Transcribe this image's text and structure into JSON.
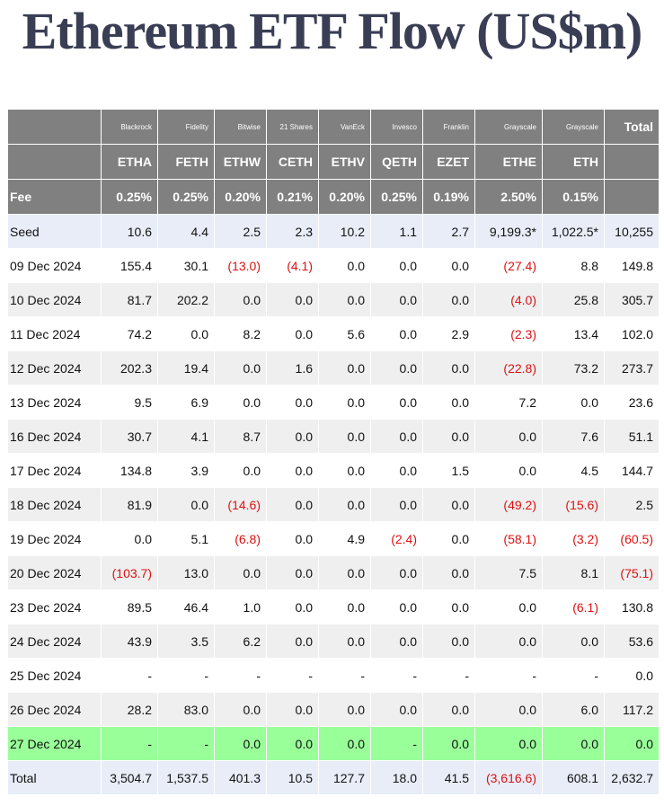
{
  "title": "Ethereum ETF Flow (US$m)",
  "header": {
    "issuers": [
      "",
      "Blackrock",
      "Fidelity",
      "Bitwise",
      "21 Shares",
      "VanEck",
      "Invesco",
      "Franklin",
      "Grayscale",
      "Grayscale",
      "Total"
    ],
    "tickers": [
      "",
      "ETHA",
      "FETH",
      "ETHW",
      "CETH",
      "ETHV",
      "QETH",
      "EZET",
      "ETHE",
      "ETH",
      ""
    ],
    "fees": [
      "Fee",
      "0.25%",
      "0.25%",
      "0.20%",
      "0.21%",
      "0.20%",
      "0.25%",
      "0.19%",
      "2.50%",
      "0.15%",
      ""
    ]
  },
  "rows": [
    {
      "cells": [
        "Seed",
        "10.6",
        "4.4",
        "2.5",
        "2.3",
        "10.2",
        "1.1",
        "2.7",
        "9,199.3*",
        "1,022.5*",
        "10,255"
      ]
    },
    {
      "cells": [
        "09 Dec 2024",
        "155.4",
        "30.1",
        "(13.0)",
        "(4.1)",
        "0.0",
        "0.0",
        "0.0",
        "(27.4)",
        "8.8",
        "149.8"
      ]
    },
    {
      "cells": [
        "10 Dec 2024",
        "81.7",
        "202.2",
        "0.0",
        "0.0",
        "0.0",
        "0.0",
        "0.0",
        "(4.0)",
        "25.8",
        "305.7"
      ]
    },
    {
      "cells": [
        "11 Dec 2024",
        "74.2",
        "0.0",
        "8.2",
        "0.0",
        "5.6",
        "0.0",
        "2.9",
        "(2.3)",
        "13.4",
        "102.0"
      ]
    },
    {
      "cells": [
        "12 Dec 2024",
        "202.3",
        "19.4",
        "0.0",
        "1.6",
        "0.0",
        "0.0",
        "0.0",
        "(22.8)",
        "73.2",
        "273.7"
      ]
    },
    {
      "cells": [
        "13 Dec 2024",
        "9.5",
        "6.9",
        "0.0",
        "0.0",
        "0.0",
        "0.0",
        "0.0",
        "7.2",
        "0.0",
        "23.6"
      ]
    },
    {
      "cells": [
        "16 Dec 2024",
        "30.7",
        "4.1",
        "8.7",
        "0.0",
        "0.0",
        "0.0",
        "0.0",
        "0.0",
        "7.6",
        "51.1"
      ]
    },
    {
      "cells": [
        "17 Dec 2024",
        "134.8",
        "3.9",
        "0.0",
        "0.0",
        "0.0",
        "0.0",
        "1.5",
        "0.0",
        "4.5",
        "144.7"
      ]
    },
    {
      "cells": [
        "18 Dec 2024",
        "81.9",
        "0.0",
        "(14.6)",
        "0.0",
        "0.0",
        "0.0",
        "0.0",
        "(49.2)",
        "(15.6)",
        "2.5"
      ]
    },
    {
      "cells": [
        "19 Dec 2024",
        "0.0",
        "5.1",
        "(6.8)",
        "0.0",
        "4.9",
        "(2.4)",
        "0.0",
        "(58.1)",
        "(3.2)",
        "(60.5)"
      ]
    },
    {
      "cells": [
        "20 Dec 2024",
        "(103.7)",
        "13.0",
        "0.0",
        "0.0",
        "0.0",
        "0.0",
        "0.0",
        "7.5",
        "8.1",
        "(75.1)"
      ]
    },
    {
      "cells": [
        "23 Dec 2024",
        "89.5",
        "46.4",
        "1.0",
        "0.0",
        "0.0",
        "0.0",
        "0.0",
        "0.0",
        "(6.1)",
        "130.8"
      ]
    },
    {
      "cells": [
        "24 Dec 2024",
        "43.9",
        "3.5",
        "6.2",
        "0.0",
        "0.0",
        "0.0",
        "0.0",
        "0.0",
        "0.0",
        "53.6"
      ]
    },
    {
      "cells": [
        "25 Dec 2024",
        "-",
        "-",
        "-",
        "-",
        "-",
        "-",
        "-",
        "-",
        "-",
        "0.0"
      ]
    },
    {
      "cells": [
        "26 Dec 2024",
        "28.2",
        "83.0",
        "0.0",
        "0.0",
        "0.0",
        "0.0",
        "0.0",
        "0.0",
        "6.0",
        "117.2"
      ]
    },
    {
      "cells": [
        "27 Dec 2024",
        "-",
        "-",
        "0.0",
        "0.0",
        "0.0",
        "-",
        "0.0",
        "0.0",
        "0.0",
        "0.0"
      ]
    },
    {
      "cells": [
        "Total",
        "3,504.7",
        "1,537.5",
        "401.3",
        "10.5",
        "127.7",
        "18.0",
        "41.5",
        "(3,616.6)",
        "608.1",
        "2,632.7"
      ]
    }
  ],
  "colors": {
    "header_bg": "#808080",
    "negative": "#dd1111",
    "highlight_row": "#99ff99",
    "seed_total_row": "#e8edf7",
    "alt_row": "#efefef",
    "title": "#3a3e55"
  }
}
